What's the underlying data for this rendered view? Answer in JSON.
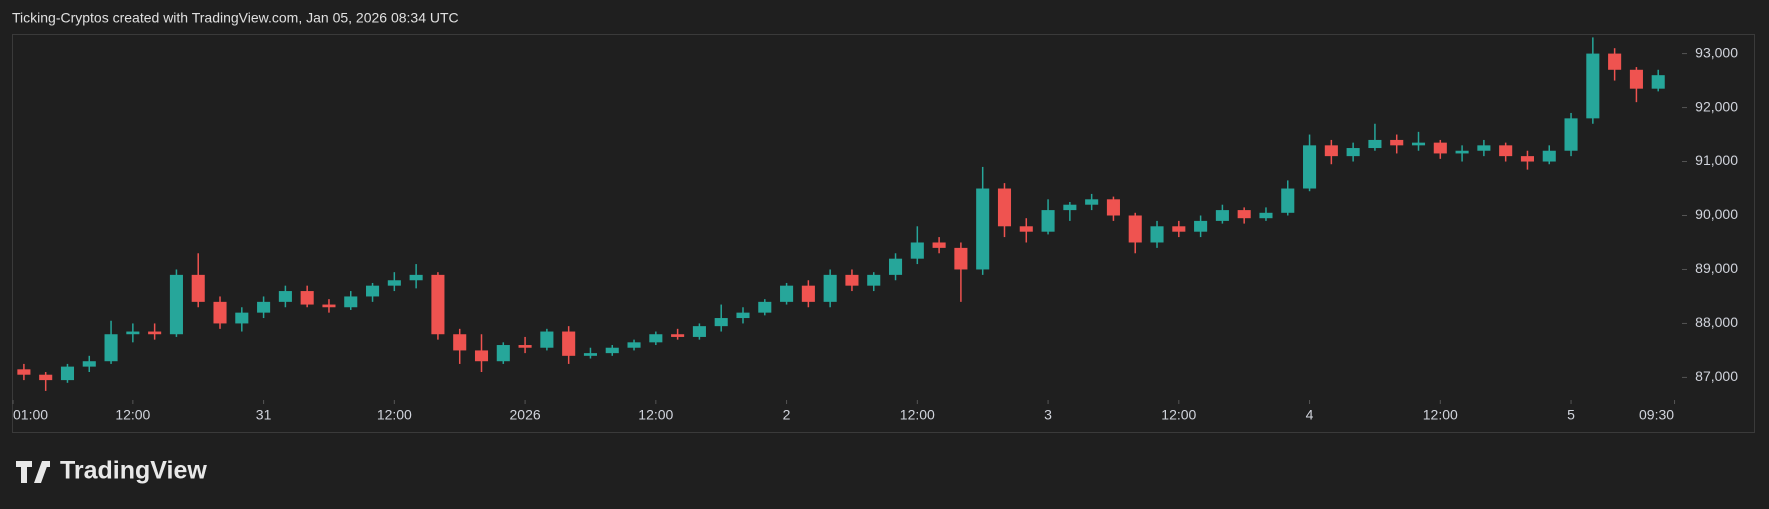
{
  "chart_data": {
    "type": "candlestick",
    "title": "Ticking-Cryptos created with TradingView.com, Jan 05, 2026 08:34 UTC",
    "watermark": "TradingView",
    "up_color": "#26a69a",
    "down_color": "#ef5350",
    "open": [
      87150,
      87050,
      86950,
      87200,
      87300,
      87800,
      87850,
      87800,
      88900,
      88400,
      88000,
      88200,
      88400,
      88600,
      88350,
      88300,
      88500,
      88700,
      88800,
      88900,
      87800,
      87500,
      87300,
      87600,
      87550,
      87850,
      87400,
      87450,
      87550,
      87650,
      87800,
      87750,
      87950,
      88100,
      88200,
      88400,
      88700,
      88400,
      88900,
      88700,
      88900,
      89200,
      89500,
      89400,
      89000,
      90500,
      89800,
      89700,
      90100,
      90200,
      90300,
      90000,
      89500,
      89800,
      89700,
      89900,
      90100,
      89950,
      90050,
      90500,
      91300,
      91100,
      91250,
      91400,
      91300,
      91350,
      91150,
      91200,
      91300,
      91100,
      91000,
      91200,
      91800,
      93000,
      92700,
      92350
    ],
    "high": [
      87250,
      87100,
      87250,
      87400,
      88050,
      88000,
      88000,
      89000,
      89300,
      88500,
      88300,
      88500,
      88700,
      88700,
      88450,
      88600,
      88750,
      88950,
      89100,
      88950,
      87900,
      87800,
      87650,
      87750,
      87900,
      87950,
      87550,
      87600,
      87700,
      87850,
      87900,
      88000,
      88350,
      88300,
      88450,
      88750,
      88800,
      89000,
      89000,
      88950,
      89300,
      89800,
      89600,
      89500,
      90900,
      90600,
      89950,
      90300,
      90250,
      90400,
      90350,
      90050,
      89900,
      89900,
      90000,
      90200,
      90150,
      90150,
      90650,
      91500,
      91400,
      91350,
      91700,
      91500,
      91550,
      91400,
      91300,
      91400,
      91350,
      91200,
      91300,
      91900,
      93300,
      93100,
      92750,
      92700
    ],
    "low": [
      86950,
      86750,
      86900,
      87100,
      87250,
      87650,
      87700,
      87750,
      88300,
      87900,
      87850,
      88100,
      88300,
      88300,
      88200,
      88250,
      88400,
      88600,
      88650,
      87700,
      87250,
      87100,
      87250,
      87450,
      87500,
      87250,
      87350,
      87400,
      87500,
      87600,
      87700,
      87700,
      87850,
      88000,
      88150,
      88350,
      88300,
      88300,
      88600,
      88600,
      88800,
      89100,
      89300,
      88400,
      88900,
      89600,
      89500,
      89650,
      89900,
      90100,
      89900,
      89300,
      89400,
      89600,
      89600,
      89850,
      89850,
      89900,
      90000,
      90450,
      90950,
      91000,
      91200,
      91150,
      91200,
      91050,
      91000,
      91100,
      91000,
      90850,
      90950,
      91100,
      91700,
      92500,
      92100,
      92300
    ],
    "close": [
      87050,
      86950,
      87200,
      87300,
      87800,
      87850,
      87800,
      88900,
      88400,
      88000,
      88200,
      88400,
      88600,
      88350,
      88300,
      88500,
      88700,
      88800,
      88900,
      87800,
      87500,
      87300,
      87600,
      87550,
      87850,
      87400,
      87450,
      87550,
      87650,
      87800,
      87750,
      87950,
      88100,
      88200,
      88400,
      88700,
      88400,
      88900,
      88700,
      88900,
      89200,
      89500,
      89400,
      89000,
      90500,
      89800,
      89700,
      90100,
      90200,
      90300,
      90000,
      89500,
      89800,
      89700,
      89900,
      90100,
      89950,
      90050,
      90500,
      91300,
      91100,
      91250,
      91400,
      91300,
      91350,
      91150,
      91200,
      91300,
      91100,
      91000,
      91200,
      91800,
      93000,
      92700,
      92350,
      92600
    ],
    "xlim": [
      -0.5,
      76
    ],
    "xticks": [
      {
        "value": -0.5,
        "label": "01:00"
      },
      {
        "value": 5,
        "label": "12:00"
      },
      {
        "value": 11,
        "label": "31"
      },
      {
        "value": 17,
        "label": "12:00"
      },
      {
        "value": 23,
        "label": "2026"
      },
      {
        "value": 29,
        "label": "12:00"
      },
      {
        "value": 35,
        "label": "2"
      },
      {
        "value": 41,
        "label": "12:00"
      },
      {
        "value": 47,
        "label": "3"
      },
      {
        "value": 53,
        "label": "12:00"
      },
      {
        "value": 59,
        "label": "4"
      },
      {
        "value": 65,
        "label": "12:00"
      },
      {
        "value": 71,
        "label": "5"
      },
      {
        "value": 75.75,
        "label": "09:30"
      }
    ],
    "ylim": [
      86600,
      93400
    ],
    "yticks": [
      {
        "value": 87000,
        "label": "87,000"
      },
      {
        "value": 88000,
        "label": "88,000"
      },
      {
        "value": 89000,
        "label": "89,000"
      },
      {
        "value": 90000,
        "label": "90,000"
      },
      {
        "value": 91000,
        "label": "91,000"
      },
      {
        "value": 92000,
        "label": "92,000"
      },
      {
        "value": 93000,
        "label": "93,000"
      }
    ]
  }
}
